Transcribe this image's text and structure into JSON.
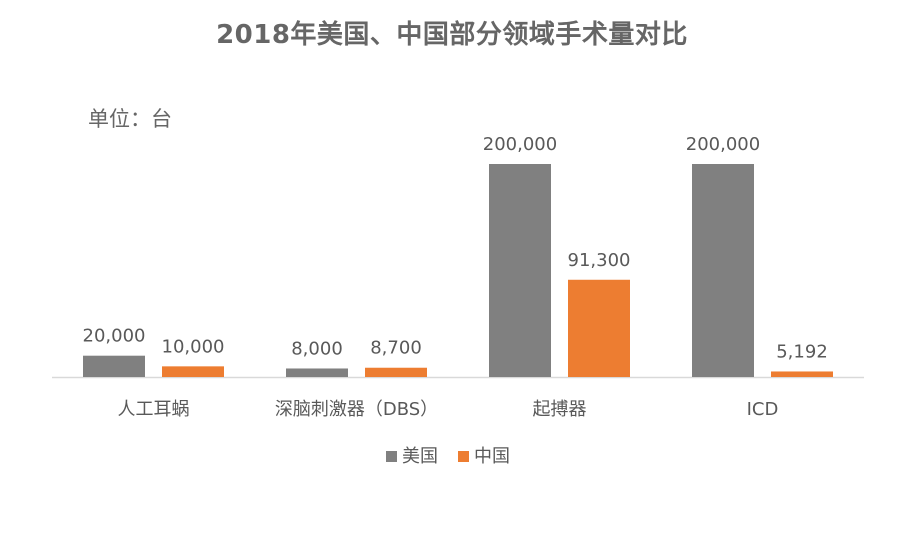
{
  "chart_data": {
    "type": "bar",
    "title": "2018年美国、中国部分领域手术量对比",
    "unit": "单位：台",
    "categories": [
      "人工耳蜗",
      "深脑刺激器（DBS）",
      "起搏器",
      "ICD"
    ],
    "series": [
      {
        "name": "美国",
        "color": "#808080",
        "values": [
          20000,
          8000,
          200000,
          200000
        ],
        "labels": [
          "20,000",
          "8,000",
          "200,000",
          "200,000"
        ]
      },
      {
        "name": "中国",
        "color": "#ED7D31",
        "values": [
          10000,
          8700,
          91300,
          5192
        ],
        "labels": [
          "10,000",
          "8,700",
          "91,300",
          "5,192"
        ]
      }
    ],
    "ylim": [
      0,
      200000
    ],
    "grid": false,
    "legend": "bottom",
    "axis_color": "#D9D9D9",
    "text_color": "#595959"
  }
}
